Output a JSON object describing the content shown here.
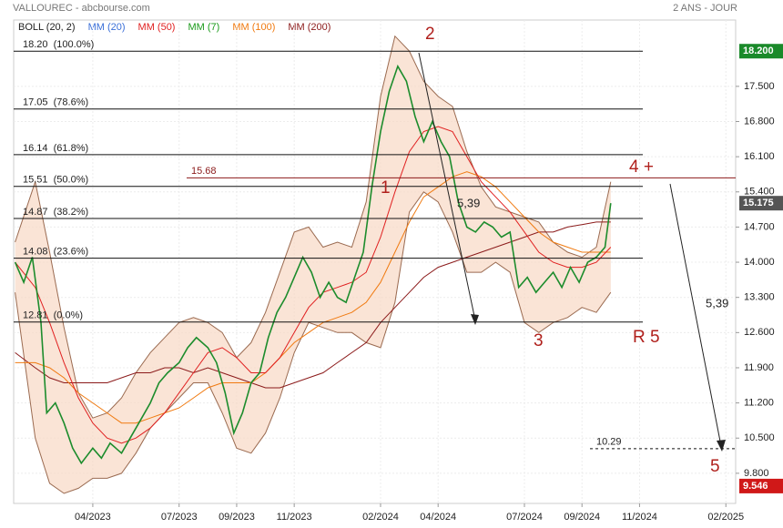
{
  "chart_data": {
    "type": "line",
    "title": "VALLOUREC - abcbourse.com",
    "subtitle": "2 ANS - JOUR",
    "legend": [
      {
        "name": "BOLL (20, 2)",
        "color": "#222222"
      },
      {
        "name": "MM (20)",
        "color": "#3a6fd8"
      },
      {
        "name": "MM (50)",
        "color": "#e02020"
      },
      {
        "name": "MM (7)",
        "color": "#1a9a1a"
      },
      {
        "name": "MM (100)",
        "color": "#f07a10"
      },
      {
        "name": "MM (200)",
        "color": "#8b1a1a"
      }
    ],
    "xlim": [
      0.25,
      25.34
    ],
    "xticks": [
      {
        "value": 3,
        "label": "04/2023"
      },
      {
        "value": 6,
        "label": "07/2023"
      },
      {
        "value": 8,
        "label": "09/2023"
      },
      {
        "value": 10,
        "label": "11/2023"
      },
      {
        "value": 13,
        "label": "02/2024"
      },
      {
        "value": 15,
        "label": "04/2024"
      },
      {
        "value": 18,
        "label": "07/2024"
      },
      {
        "value": 20,
        "label": "09/2024"
      },
      {
        "value": 22,
        "label": "11/2024"
      },
      {
        "value": 25,
        "label": "02/2025"
      }
    ],
    "ylim": [
      9.2,
      18.82
    ],
    "yticks": [
      {
        "value": 17.5,
        "label": "17.500"
      },
      {
        "value": 16.8,
        "label": "16.800"
      },
      {
        "value": 16.1,
        "label": "16.100"
      },
      {
        "value": 15.4,
        "label": "15.400"
      },
      {
        "value": 14.7,
        "label": "14.700"
      },
      {
        "value": 14.0,
        "label": "14.000"
      },
      {
        "value": 13.3,
        "label": "13.300"
      },
      {
        "value": 12.6,
        "label": "12.600"
      },
      {
        "value": 11.9,
        "label": "11.900"
      },
      {
        "value": 11.2,
        "label": "11.200"
      },
      {
        "value": 10.5,
        "label": "10.500"
      },
      {
        "value": 9.8,
        "label": "9.800"
      }
    ],
    "grid": true,
    "series": [
      {
        "name": "Bollinger sup",
        "color": "#9a6a50",
        "x": [
          0.3,
          1,
          1.5,
          2,
          2.5,
          3,
          3.5,
          4,
          4.5,
          5,
          5.5,
          6,
          6.5,
          7,
          7.5,
          8,
          8.5,
          9,
          9.5,
          10,
          10.5,
          11,
          11.5,
          12,
          12.5,
          13,
          13.5,
          14,
          14.5,
          15,
          15.5,
          16,
          16.5,
          17,
          17.5,
          18,
          18.5,
          19,
          19.5,
          20,
          20.5,
          21
        ],
        "values": [
          14.4,
          15.6,
          14.2,
          12.7,
          11.4,
          10.9,
          11.0,
          11.3,
          11.8,
          12.2,
          12.5,
          12.8,
          12.9,
          12.8,
          12.6,
          12.1,
          12.4,
          13.0,
          13.8,
          14.6,
          14.7,
          14.3,
          14.4,
          14.3,
          15.2,
          17.3,
          18.5,
          18.2,
          17.6,
          17.3,
          17.1,
          16.2,
          15.5,
          15.1,
          15.0,
          14.9,
          14.8,
          14.4,
          14.2,
          14.1,
          14.3,
          15.6
        ]
      },
      {
        "name": "Bollinger inf",
        "color": "#9a6a50",
        "x": [
          0.3,
          1,
          1.5,
          2,
          2.5,
          3,
          3.5,
          4,
          4.5,
          5,
          5.5,
          6,
          6.5,
          7,
          7.5,
          8,
          8.5,
          9,
          9.5,
          10,
          10.5,
          11,
          11.5,
          12,
          12.5,
          13,
          13.5,
          14,
          14.5,
          15,
          15.5,
          16,
          16.5,
          17,
          17.5,
          18,
          18.5,
          19,
          19.5,
          20,
          20.5,
          21
        ],
        "values": [
          13.4,
          10.5,
          9.6,
          9.4,
          9.5,
          9.7,
          9.7,
          9.8,
          10.2,
          10.7,
          11.0,
          11.3,
          11.6,
          11.6,
          11.0,
          10.3,
          10.2,
          10.6,
          11.3,
          12.2,
          12.8,
          12.7,
          12.6,
          12.6,
          12.4,
          12.3,
          13.2,
          15.0,
          15.4,
          15.2,
          14.6,
          13.8,
          13.8,
          14.0,
          13.8,
          12.8,
          12.6,
          12.8,
          12.9,
          13.1,
          13.0,
          13.4
        ]
      },
      {
        "name": "MM (200)",
        "color": "#8b1a1a",
        "x": [
          0.3,
          1,
          1.5,
          2,
          2.5,
          3,
          3.5,
          4,
          4.5,
          5,
          5.5,
          6,
          6.5,
          7,
          7.5,
          8,
          8.5,
          9,
          9.5,
          10,
          10.5,
          11,
          11.5,
          12,
          12.5,
          13,
          13.5,
          14,
          14.5,
          15,
          15.5,
          16,
          16.5,
          17,
          17.5,
          18,
          18.5,
          19,
          19.5,
          20,
          20.5,
          21
        ],
        "values": [
          12.2,
          11.9,
          11.7,
          11.6,
          11.6,
          11.6,
          11.6,
          11.7,
          11.8,
          11.8,
          11.9,
          11.9,
          11.8,
          11.9,
          11.8,
          11.7,
          11.6,
          11.5,
          11.5,
          11.6,
          11.7,
          11.8,
          12.0,
          12.2,
          12.4,
          12.8,
          13.1,
          13.4,
          13.7,
          13.9,
          14.0,
          14.1,
          14.2,
          14.3,
          14.4,
          14.5,
          14.6,
          14.6,
          14.7,
          14.75,
          14.8,
          14.8
        ]
      },
      {
        "name": "MM (100)",
        "color": "#f07a10",
        "x": [
          0.3,
          1,
          1.5,
          2,
          2.5,
          3,
          3.5,
          4,
          4.5,
          5,
          5.5,
          6,
          6.5,
          7,
          7.5,
          8,
          8.5,
          9,
          9.5,
          10,
          10.5,
          11,
          11.5,
          12,
          12.5,
          13,
          13.5,
          14,
          14.5,
          15,
          15.5,
          16,
          16.5,
          17,
          17.5,
          18,
          18.5,
          19,
          19.5,
          20,
          20.5,
          21
        ],
        "values": [
          12.0,
          12.0,
          11.9,
          11.7,
          11.4,
          11.2,
          11.0,
          10.8,
          10.8,
          10.9,
          11.0,
          11.1,
          11.3,
          11.5,
          11.6,
          11.6,
          11.6,
          11.8,
          12.1,
          12.4,
          12.6,
          12.8,
          12.9,
          13.0,
          13.2,
          13.6,
          14.2,
          14.8,
          15.3,
          15.5,
          15.7,
          15.8,
          15.7,
          15.5,
          15.2,
          14.9,
          14.6,
          14.4,
          14.3,
          14.2,
          14.2,
          14.2
        ]
      },
      {
        "name": "MM (50)",
        "color": "#e02020",
        "x": [
          0.3,
          1,
          1.5,
          2,
          2.5,
          3,
          3.5,
          4,
          4.5,
          5,
          5.5,
          6,
          6.5,
          7,
          7.5,
          8,
          8.5,
          9,
          9.5,
          10,
          10.5,
          11,
          11.5,
          12,
          12.5,
          13,
          13.5,
          14,
          14.5,
          15,
          15.5,
          16,
          16.5,
          17,
          17.5,
          18,
          18.5,
          19,
          19.5,
          20,
          20.5,
          21
        ],
        "values": [
          14.0,
          13.5,
          12.8,
          12.0,
          11.3,
          10.8,
          10.5,
          10.4,
          10.5,
          10.7,
          11.0,
          11.4,
          11.8,
          12.2,
          12.3,
          12.1,
          11.8,
          11.8,
          12.1,
          12.6,
          13.1,
          13.4,
          13.5,
          13.6,
          13.8,
          14.5,
          15.4,
          16.2,
          16.6,
          16.7,
          16.6,
          16.1,
          15.6,
          15.3,
          15.0,
          14.6,
          14.2,
          14.0,
          13.9,
          13.9,
          14.0,
          14.3
        ]
      },
      {
        "name": "Cours",
        "color": "#1c8c2c",
        "x": [
          0.3,
          0.6,
          0.9,
          1.2,
          1.4,
          1.7,
          2.0,
          2.3,
          2.6,
          3.0,
          3.3,
          3.6,
          4.0,
          4.3,
          4.6,
          5.0,
          5.3,
          5.6,
          6.0,
          6.3,
          6.6,
          7.0,
          7.3,
          7.6,
          7.9,
          8.2,
          8.5,
          8.8,
          9.1,
          9.4,
          9.7,
          10.0,
          10.3,
          10.6,
          10.9,
          11.2,
          11.5,
          11.8,
          12.1,
          12.4,
          12.7,
          13.0,
          13.3,
          13.6,
          13.9,
          14.2,
          14.5,
          14.8,
          15.1,
          15.4,
          15.7,
          16.0,
          16.3,
          16.6,
          16.9,
          17.2,
          17.5,
          17.8,
          18.1,
          18.4,
          18.7,
          19.0,
          19.3,
          19.6,
          19.9,
          20.2,
          20.5,
          20.8,
          21.0
        ],
        "values": [
          14.0,
          13.6,
          14.1,
          12.8,
          11.0,
          11.2,
          10.8,
          10.3,
          10.0,
          10.3,
          10.1,
          10.4,
          10.2,
          10.5,
          10.8,
          11.2,
          11.6,
          11.8,
          12.0,
          12.3,
          12.5,
          12.3,
          12.0,
          11.4,
          10.6,
          11.0,
          11.6,
          11.8,
          12.5,
          13.0,
          13.3,
          13.7,
          14.1,
          13.8,
          13.3,
          13.6,
          13.3,
          13.2,
          13.7,
          14.2,
          15.5,
          16.6,
          17.4,
          17.9,
          17.6,
          16.9,
          16.4,
          16.8,
          16.4,
          16.1,
          15.2,
          14.7,
          14.6,
          14.8,
          14.7,
          14.5,
          14.6,
          13.5,
          13.7,
          13.4,
          13.6,
          13.8,
          13.5,
          13.9,
          13.6,
          14.0,
          14.1,
          14.3,
          15.175
        ]
      }
    ],
    "fib_levels": [
      {
        "value": 18.2,
        "label": "18.20  (100.0%)"
      },
      {
        "value": 17.05,
        "label": "17.05  (78.6%)"
      },
      {
        "value": 16.14,
        "label": "16.14  (61.8%)"
      },
      {
        "value": 15.51,
        "label": "15.51  (50.0%)"
      },
      {
        "value": 14.87,
        "label": "14.87  (38.2%)"
      },
      {
        "value": 14.08,
        "label": "14.08  (23.6%)"
      },
      {
        "value": 12.81,
        "label": "12.81  (0.0%)"
      }
    ],
    "resistance": {
      "value": 15.68,
      "label": "15.68",
      "color": "#8b1a1a"
    },
    "target": {
      "value": 10.29,
      "label": "10.29"
    },
    "price_tags": [
      {
        "value": 18.2,
        "label": "18.200",
        "color": "#1a8a2a"
      },
      {
        "value": 15.175,
        "label": "15.175",
        "color": "#555555"
      },
      {
        "value": 9.546,
        "label": "9.546",
        "color": "#d01818"
      }
    ],
    "annotations": {
      "wave2": "2",
      "wave1": "1",
      "wave3": "3",
      "wave4": "4 +",
      "r5": "R 5",
      "wave5": "5",
      "len_a": "5,39",
      "len_b": "5,39"
    }
  }
}
